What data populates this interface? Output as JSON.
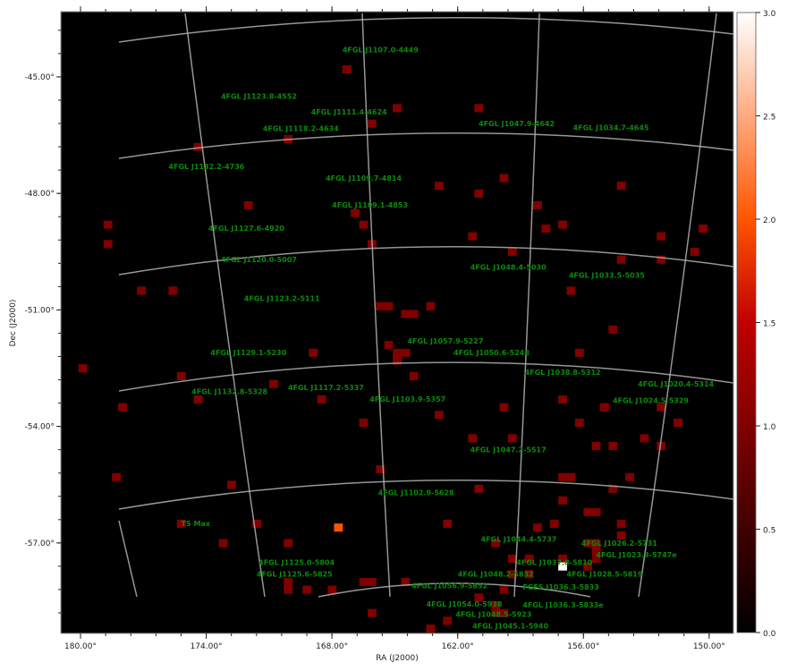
{
  "chart_data": {
    "type": "heatmap",
    "xlabel": "RA (J2000)",
    "ylabel": "Dec (J2000)",
    "xlim": [
      180.94,
      148.84
    ],
    "ylim": [
      -59.33,
      -43.32
    ],
    "x_ticks": [
      "180.00°",
      "174.00°",
      "168.00°",
      "162.00°",
      "156.00°",
      "150.00°"
    ],
    "x_tick_values": [
      180,
      174,
      168,
      162,
      156,
      150
    ],
    "y_ticks": [
      "-45.00°",
      "-48.00°",
      "-51.00°",
      "-54.00°",
      "-57.00°"
    ],
    "y_tick_values": [
      -45,
      -48,
      -51,
      -54,
      -57
    ],
    "colormap": "gist_heat",
    "colorbar": {
      "range": [
        0,
        3
      ],
      "ticks": [
        "0.0",
        "0.5",
        "1.0",
        "1.5",
        "2.0",
        "2.5",
        "3.0"
      ],
      "tick_values": [
        0,
        0.5,
        1,
        1.5,
        2,
        2.5,
        3
      ]
    },
    "background_value": 0,
    "pixel_size_deg": {
      "ra": 0.4,
      "dec": 0.2
    },
    "grid_overlay": true,
    "pixels": [
      [
        167.3,
        -44.8,
        1
      ],
      [
        164.9,
        -45.8,
        1
      ],
      [
        161.0,
        -45.8,
        1
      ],
      [
        166.1,
        -46.2,
        1
      ],
      [
        170.1,
        -46.6,
        1
      ],
      [
        174.4,
        -46.8,
        1
      ],
      [
        159.8,
        -47.6,
        1
      ],
      [
        162.9,
        -47.8,
        1
      ],
      [
        154.2,
        -47.8,
        1
      ],
      [
        161.0,
        -48.0,
        1
      ],
      [
        172.0,
        -48.3,
        1
      ],
      [
        158.2,
        -48.3,
        1
      ],
      [
        166.9,
        -48.5,
        1
      ],
      [
        166.5,
        -48.8,
        1
      ],
      [
        178.7,
        -48.8,
        1
      ],
      [
        157.0,
        -48.8,
        1
      ],
      [
        157.8,
        -48.9,
        1
      ],
      [
        150.3,
        -48.9,
        1
      ],
      [
        161.3,
        -49.1,
        1
      ],
      [
        152.3,
        -49.1,
        1
      ],
      [
        166.1,
        -49.3,
        1
      ],
      [
        178.7,
        -49.3,
        1
      ],
      [
        159.4,
        -49.5,
        1
      ],
      [
        150.7,
        -49.5,
        1
      ],
      [
        154.2,
        -49.7,
        1
      ],
      [
        152.3,
        -49.7,
        1
      ],
      [
        177.1,
        -50.5,
        1
      ],
      [
        175.6,
        -50.5,
        1
      ],
      [
        156.6,
        -50.5,
        1
      ],
      [
        165.7,
        -50.9,
        1
      ],
      [
        165.3,
        -50.9,
        1
      ],
      [
        164.5,
        -51.1,
        1
      ],
      [
        164.1,
        -51.1,
        1
      ],
      [
        163.3,
        -50.9,
        1
      ],
      [
        154.6,
        -51.5,
        1
      ],
      [
        165.3,
        -51.9,
        1
      ],
      [
        164.9,
        -52.1,
        1
      ],
      [
        164.5,
        -52.1,
        1
      ],
      [
        164.9,
        -52.3,
        1
      ],
      [
        168.9,
        -52.1,
        1
      ],
      [
        156.2,
        -52.1,
        1
      ],
      [
        179.9,
        -52.5,
        1
      ],
      [
        175.2,
        -52.7,
        1
      ],
      [
        164.1,
        -52.7,
        1
      ],
      [
        170.8,
        -52.9,
        1
      ],
      [
        174.4,
        -53.3,
        1
      ],
      [
        168.5,
        -53.3,
        1
      ],
      [
        157.0,
        -53.3,
        1
      ],
      [
        178.0,
        -53.5,
        1
      ],
      [
        159.8,
        -53.5,
        1
      ],
      [
        155.0,
        -53.5,
        1
      ],
      [
        152.3,
        -53.5,
        1
      ],
      [
        162.9,
        -53.7,
        1
      ],
      [
        166.5,
        -53.9,
        1
      ],
      [
        156.2,
        -53.9,
        1
      ],
      [
        151.5,
        -53.9,
        1
      ],
      [
        161.3,
        -54.3,
        1
      ],
      [
        159.4,
        -54.3,
        1
      ],
      [
        153.1,
        -54.3,
        1
      ],
      [
        155.4,
        -54.5,
        1
      ],
      [
        154.6,
        -54.5,
        1
      ],
      [
        152.3,
        -54.5,
        1
      ],
      [
        165.7,
        -55.1,
        1
      ],
      [
        178.3,
        -55.3,
        1
      ],
      [
        157.0,
        -55.3,
        1
      ],
      [
        156.6,
        -55.3,
        1
      ],
      [
        153.8,
        -55.3,
        1
      ],
      [
        172.8,
        -55.5,
        1
      ],
      [
        161.0,
        -55.6,
        1
      ],
      [
        154.6,
        -55.6,
        1
      ],
      [
        157.0,
        -55.9,
        1
      ],
      [
        155.8,
        -56.2,
        1
      ],
      [
        155.4,
        -56.2,
        1
      ],
      [
        175.2,
        -56.5,
        1
      ],
      [
        171.6,
        -56.5,
        1
      ],
      [
        162.5,
        -56.5,
        1
      ],
      [
        157.4,
        -56.5,
        1
      ],
      [
        154.2,
        -56.5,
        1
      ],
      [
        158.2,
        -56.6,
        1
      ],
      [
        167.7,
        -56.6,
        2
      ],
      [
        154.2,
        -56.8,
        1
      ],
      [
        173.2,
        -57.0,
        1
      ],
      [
        170.1,
        -57.0,
        1
      ],
      [
        160.2,
        -57.0,
        1
      ],
      [
        155.8,
        -57.0,
        1
      ],
      [
        155.4,
        -57.0,
        1
      ],
      [
        155.4,
        -57.2,
        1
      ],
      [
        155.4,
        -57.4,
        1
      ],
      [
        159.4,
        -57.4,
        1
      ],
      [
        158.6,
        -57.4,
        1
      ],
      [
        157.0,
        -57.4,
        1
      ],
      [
        155.8,
        -57.6,
        1
      ],
      [
        157.0,
        -57.6,
        3
      ],
      [
        159.4,
        -57.8,
        1
      ],
      [
        158.6,
        -57.8,
        1
      ],
      [
        170.1,
        -58.0,
        1
      ],
      [
        170.1,
        -58.2,
        1
      ],
      [
        169.2,
        -58.2,
        1
      ],
      [
        168.0,
        -58.2,
        1
      ],
      [
        166.5,
        -58.0,
        1
      ],
      [
        166.1,
        -58.0,
        1
      ],
      [
        164.5,
        -58.0,
        1
      ],
      [
        159.8,
        -58.2,
        1
      ],
      [
        161.0,
        -58.4,
        1
      ],
      [
        160.2,
        -58.6,
        1
      ],
      [
        159.8,
        -58.8,
        1
      ],
      [
        160.2,
        -58.8,
        1
      ],
      [
        166.1,
        -58.8,
        1
      ],
      [
        162.5,
        -59.0,
        1
      ],
      [
        163.3,
        -59.2,
        1
      ]
    ],
    "annotations": [
      {
        "text": "4FGL J1107.0-4449",
        "ra": 167.5,
        "dec": -44.3
      },
      {
        "text": "4FGL J1123.8-4552",
        "ra": 173.3,
        "dec": -45.5
      },
      {
        "text": "4FGL J1111.4-4624",
        "ra": 169.0,
        "dec": -45.9
      },
      {
        "text": "4FGL J1118.2-4634",
        "ra": 171.3,
        "dec": -46.1
      },
      {
        "text": "4FGL J1047.9-4642",
        "ra": 161.0,
        "dec": -46.2
      },
      {
        "text": "4FGL J1034.7-4645",
        "ra": 156.5,
        "dec": -46.3
      },
      {
        "text": "4FGL J1132.2-4736",
        "ra": 175.8,
        "dec": -47.3
      },
      {
        "text": "4FGL J1109.7-4814",
        "ra": 168.3,
        "dec": -47.6
      },
      {
        "text": "4FGL J1109.1-4853",
        "ra": 168.0,
        "dec": -48.3
      },
      {
        "text": "4FGL J1127.6-4920",
        "ra": 173.9,
        "dec": -48.9
      },
      {
        "text": "4FGL J1120.0-5007",
        "ra": 173.3,
        "dec": -49.7
      },
      {
        "text": "4FGL J1048.4-5030",
        "ra": 161.4,
        "dec": -49.9
      },
      {
        "text": "4FGL J1033.5-5035",
        "ra": 156.7,
        "dec": -50.1
      },
      {
        "text": "4FGL J1123.2-5111",
        "ra": 172.2,
        "dec": -50.7
      },
      {
        "text": "4FGL J1057.9-5227",
        "ra": 164.4,
        "dec": -51.8
      },
      {
        "text": "4FGL J1129.1-5230",
        "ra": 173.8,
        "dec": -52.1
      },
      {
        "text": "4FGL J1050.6-5248",
        "ra": 162.2,
        "dec": -52.1
      },
      {
        "text": "4FGL J1038.8-5312",
        "ra": 158.8,
        "dec": -52.6
      },
      {
        "text": "4FGL J1020.4-5314",
        "ra": 153.4,
        "dec": -52.9
      },
      {
        "text": "4FGL J1024.5-5329",
        "ra": 154.6,
        "dec": -53.1
      },
      {
        "text": "4FGL J1132.8-5328",
        "ra": 174.7,
        "dec": -53.1
      },
      {
        "text": "4FGL J1117.2-5337",
        "ra": 170.1,
        "dec": -53.0
      },
      {
        "text": "4FGL J1103.9-5357",
        "ra": 166.2,
        "dec": -53.3
      },
      {
        "text": "4FGL J1047.2-5517",
        "ra": 161.4,
        "dec": -54.6
      },
      {
        "text": "4FGL J1102.9-5628",
        "ra": 165.8,
        "dec": -55.7
      },
      {
        "text": "TS Max",
        "ra": 175.2,
        "dec": -56.5
      },
      {
        "text": "4FGL J1044.4-5737",
        "ra": 160.9,
        "dec": -56.9
      },
      {
        "text": "4FGL J1026.2-5731",
        "ra": 156.1,
        "dec": -57.0
      },
      {
        "text": "4FGL J1023.3-5747e",
        "ra": 155.4,
        "dec": -57.3
      },
      {
        "text": "4FGL J1125.0-5804",
        "ra": 171.5,
        "dec": -57.5
      },
      {
        "text": "4FGL J1037.8-5810",
        "ra": 159.2,
        "dec": -57.5
      },
      {
        "text": "4FGL J1125.6-5825",
        "ra": 171.6,
        "dec": -57.8
      },
      {
        "text": "4FGL J1048.2-5832",
        "ra": 162.0,
        "dec": -57.8
      },
      {
        "text": "4FGL J1028.5-5819",
        "ra": 156.8,
        "dec": -57.8
      },
      {
        "text": "FGES J1036.3-5833",
        "ra": 158.9,
        "dec": -57.9
      },
      {
        "text": "4FGL J1036.3-5833e",
        "ra": 158.9,
        "dec": -57.9
      },
      {
        "text": "4FGL J1056.9-5852",
        "ra": 164.2,
        "dec": -58.1
      },
      {
        "text": "4FGL J1048.5-5923",
        "ra": 162.1,
        "dec": -58.6
      },
      {
        "text": "4FGL J1054.0-5938",
        "ra": 163.5,
        "dec": -58.8
      },
      {
        "text": "4FGL J1045.1-5940",
        "ra": 161.3,
        "dec": -58.9
      }
    ],
    "colors": {
      "background": "#000000",
      "annotation": "#0b8a0b",
      "grid_overlay": "#b0b0b0"
    }
  }
}
